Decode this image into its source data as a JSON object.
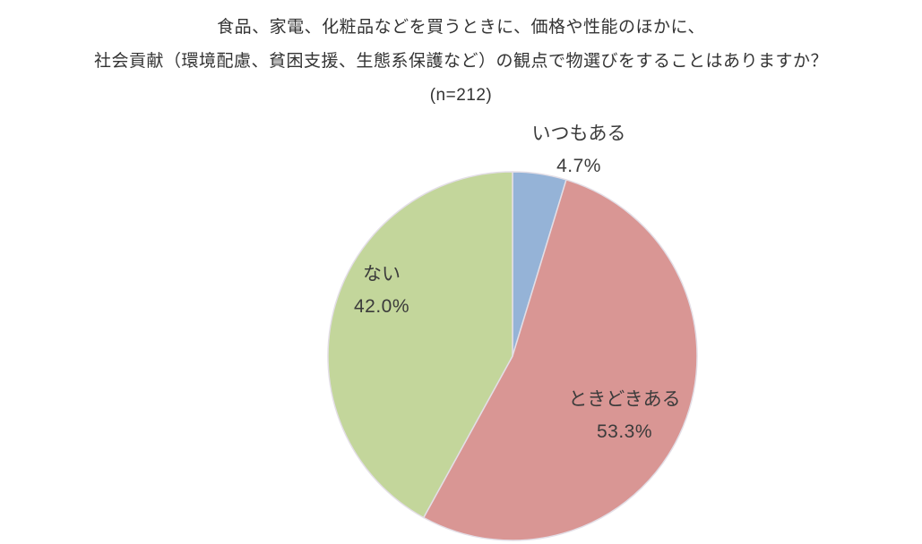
{
  "title": {
    "line1": "食品、家電、化粧品などを買うときに、価格や性能のほかに、",
    "line2": "社会貢献（環境配慮、貧困支援、生態系保護など）の観点で物選びをすることはありますか？",
    "line3": "(n=212)"
  },
  "chart_data": {
    "type": "pie",
    "title": "食品、家電、化粧品などを買うときに、価格や性能のほかに、社会貢献（環境配慮、貧困支援、生態系保護など）の観点で物選びをすることはありますか？",
    "sample_size_label": "(n=212)",
    "n": 212,
    "start_angle_deg": 0,
    "direction": "clockwise",
    "legend": "none",
    "slices": [
      {
        "label": "いつもある",
        "value": 4.7,
        "display": "4.7%",
        "color": "#95B3D7"
      },
      {
        "label": "ときどきある",
        "value": 53.3,
        "display": "53.3%",
        "color": "#D99694"
      },
      {
        "label": "ない",
        "value": 42.0,
        "display": "42.0%",
        "color": "#C3D69B"
      }
    ]
  }
}
